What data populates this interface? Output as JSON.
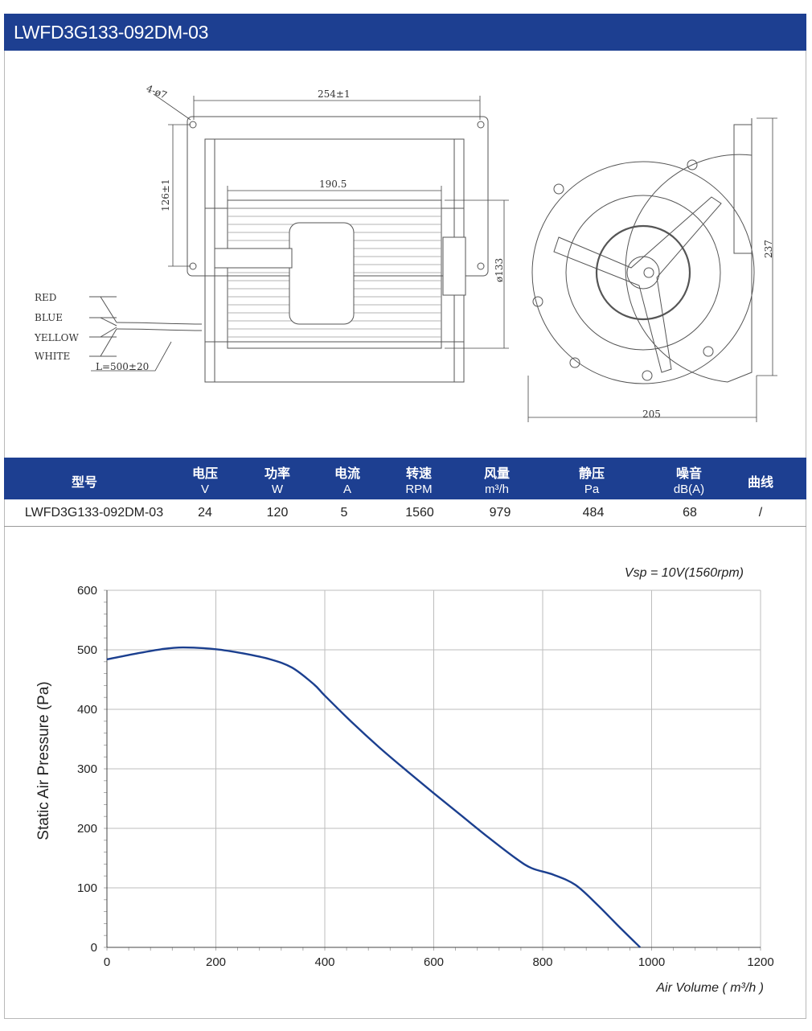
{
  "header": {
    "title": "LWFD3G133-092DM-03"
  },
  "drawing": {
    "dims": {
      "holes": "4-ø7",
      "width": "254±1",
      "inner": "190.5",
      "height": "126±1",
      "dia": "ø133",
      "side_h": "237",
      "side_w": "205",
      "lead": "L=500±20"
    },
    "wires": [
      "RED",
      "BLUE",
      "YELLOW",
      "WHITE"
    ]
  },
  "table": {
    "columns": [
      {
        "zh": "型号",
        "unit": ""
      },
      {
        "zh": "电压",
        "unit": "V"
      },
      {
        "zh": "功率",
        "unit": "W"
      },
      {
        "zh": "电流",
        "unit": "A"
      },
      {
        "zh": "转速",
        "unit": "RPM"
      },
      {
        "zh": "风量",
        "unit": "m³/h"
      },
      {
        "zh": "静压",
        "unit": "Pa"
      },
      {
        "zh": "噪音",
        "unit": "dB(A)"
      },
      {
        "zh": "曲线",
        "unit": ""
      }
    ],
    "row": [
      "LWFD3G133-092DM-03",
      "24",
      "120",
      "5",
      "1560",
      "979",
      "484",
      "68",
      "/"
    ]
  },
  "colors": {
    "header_bg": "#1d3f91",
    "curve": "#1b3f8f",
    "grid": "#c9c9c9"
  },
  "chart_data": {
    "type": "line",
    "annotation": "Vsp = 10V(1560rpm)",
    "xlabel": "Air Volume ( m³/h )",
    "ylabel": "Static Air Pressure  (Pa)",
    "xlim": [
      0,
      1200
    ],
    "ylim": [
      0,
      600
    ],
    "xticks": [
      0,
      200,
      400,
      600,
      800,
      1000,
      1200
    ],
    "yticks": [
      0,
      100,
      200,
      300,
      400,
      500,
      600
    ],
    "grid": true,
    "series": [
      {
        "x": [
          0,
          50,
          100,
          140,
          200,
          250,
          300,
          340,
          380,
          400,
          450,
          500,
          550,
          600,
          650,
          700,
          750,
          780,
          820,
          860,
          900,
          940,
          979
        ],
        "y": [
          484,
          493,
          501,
          504,
          501,
          494,
          484,
          470,
          442,
          423,
          378,
          336,
          297,
          259,
          222,
          185,
          150,
          133,
          122,
          105,
          72,
          35,
          0
        ]
      }
    ]
  }
}
